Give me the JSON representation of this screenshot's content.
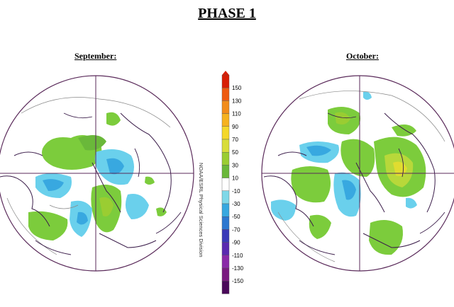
{
  "title": "PHASE 1",
  "maps": [
    {
      "label": "September:"
    },
    {
      "label": "October:"
    }
  ],
  "colorbar": {
    "ticks": [
      "150",
      "130",
      "110",
      "90",
      "70",
      "50",
      "30",
      "10",
      "-10",
      "-30",
      "-50",
      "-70",
      "-90",
      "-110",
      "-130",
      "-150"
    ],
    "colors": [
      "#d81e05",
      "#ee5a10",
      "#f28c1a",
      "#f6b21f",
      "#f4d82a",
      "#d8dd3a",
      "#9acd32",
      "#6ab83a",
      "#ffffff",
      "#7fd8e8",
      "#38a8e0",
      "#2d78d0",
      "#3a3ab8",
      "#5a2ab0",
      "#8a2aa8",
      "#7a1a80",
      "#4a0a5a"
    ]
  },
  "credit": "NOAA/ESRL Physical Sciences Division"
}
